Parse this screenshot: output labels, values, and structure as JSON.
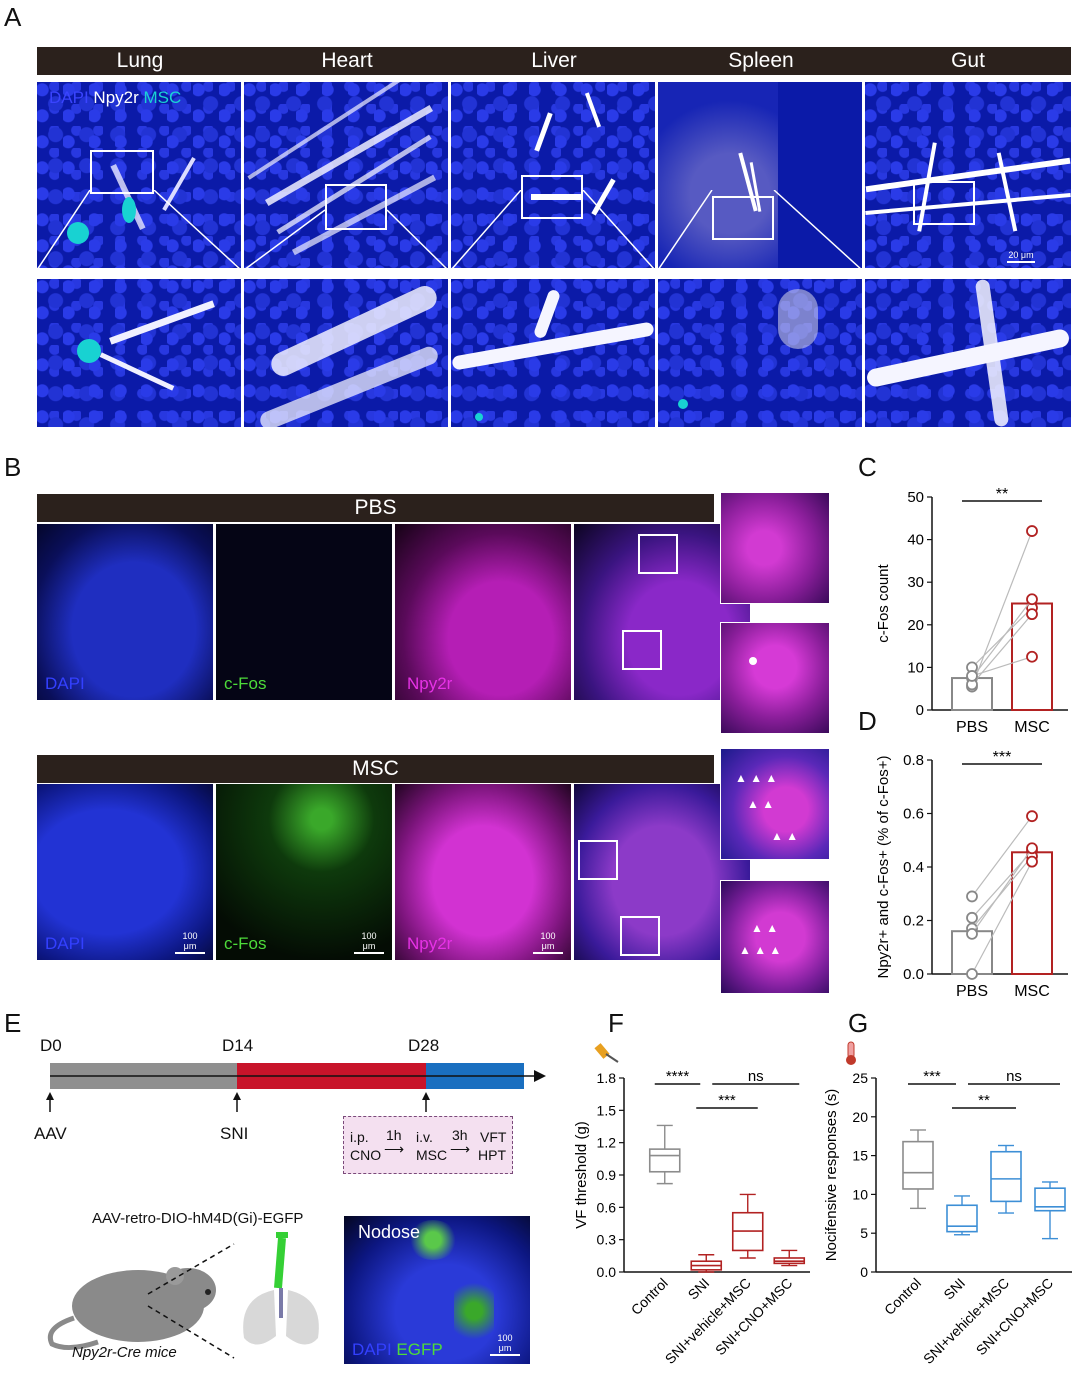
{
  "panel_letters": {
    "a": "A",
    "b": "B",
    "c": "C",
    "d": "D",
    "e": "E",
    "f": "F",
    "g": "G"
  },
  "panel_a": {
    "organs": [
      "Lung",
      "Heart",
      "Liver",
      "Spleen",
      "Gut"
    ],
    "legend": {
      "dapi": "DAPI",
      "npy2r": "Npy2r",
      "msc": "MSC"
    },
    "scale_bar": "20 μm",
    "colors": {
      "dapi": "#1a2cff",
      "npy2r": "#ffffff",
      "msc": "#19d3d3"
    }
  },
  "panel_b": {
    "groups": [
      "PBS",
      "MSC"
    ],
    "channels": {
      "dapi": "DAPI",
      "cfos": "c-Fos",
      "npy2r": "Npy2r"
    },
    "scale_bar": "100 μm",
    "colors": {
      "dapi": "#2d3cff",
      "cfos": "#4ddb3a",
      "npy2r": "#e632e6"
    }
  },
  "chart_data": [
    {
      "id": "C",
      "type": "bar",
      "categories": [
        "PBS",
        "MSC"
      ],
      "values": [
        7.5,
        25
      ],
      "ylabel": "c-Fos count",
      "ylim": [
        0,
        50
      ],
      "yticks": [
        0,
        10,
        20,
        30,
        40,
        50
      ],
      "paired_points": [
        [
          10,
          24
        ],
        [
          7.5,
          26
        ],
        [
          5.5,
          42
        ],
        [
          6,
          22.5
        ],
        [
          8,
          12.5
        ]
      ],
      "significance": "**",
      "colors": {
        "PBS": "#888888",
        "MSC": "#b22222"
      }
    },
    {
      "id": "D",
      "type": "bar",
      "categories": [
        "PBS",
        "MSC"
      ],
      "values": [
        0.16,
        0.455
      ],
      "ylabel": "Npy2r+ and c-Fos+ (% of c-Fos+)",
      "ylim": [
        0,
        0.8
      ],
      "yticks": [
        "0.0",
        "0.2",
        "0.4",
        "0.6",
        "0.8"
      ],
      "paired_points": [
        [
          0.29,
          0.59
        ],
        [
          0.21,
          0.46
        ],
        [
          0.17,
          0.44
        ],
        [
          0.0,
          0.42
        ],
        [
          0.15,
          0.47
        ]
      ],
      "significance": "***",
      "colors": {
        "PBS": "#888888",
        "MSC": "#b22222"
      }
    },
    {
      "id": "F",
      "type": "box",
      "categories": [
        "Control",
        "SNI",
        "SNI+vehicle+MSC",
        "SNI+CNO+MSC"
      ],
      "ylabel": "VF threshold (g)",
      "ylim": [
        0,
        1.8
      ],
      "yticks": [
        "0.0",
        "0.3",
        "0.6",
        "0.9",
        "1.2",
        "1.5",
        "1.8"
      ],
      "boxes": [
        {
          "min": 0.82,
          "q1": 0.93,
          "median": 1.08,
          "q3": 1.14,
          "max": 1.36
        },
        {
          "min": 0.0,
          "q1": 0.02,
          "median": 0.06,
          "q3": 0.1,
          "max": 0.16
        },
        {
          "min": 0.13,
          "q1": 0.2,
          "median": 0.38,
          "q3": 0.55,
          "max": 0.72
        },
        {
          "min": 0.06,
          "q1": 0.08,
          "median": 0.1,
          "q3": 0.13,
          "max": 0.2
        }
      ],
      "significance": [
        {
          "from": 0,
          "to": 1,
          "label": "****"
        },
        {
          "from": 1,
          "to": 3,
          "label": "ns"
        },
        {
          "from": 1,
          "to": 2,
          "label": "***"
        }
      ],
      "colors": [
        "#8c8c8c",
        "#b22222",
        "#b22222",
        "#b22222"
      ]
    },
    {
      "id": "G",
      "type": "box",
      "categories": [
        "Control",
        "SNI",
        "SNI+vehicle+MSC",
        "SNI+CNO+MSC"
      ],
      "ylabel": "Nocifensive responses (s)",
      "ylim": [
        0,
        25
      ],
      "yticks": [
        "0",
        "5",
        "10",
        "15",
        "20",
        "25"
      ],
      "boxes": [
        {
          "min": 8.2,
          "q1": 10.7,
          "median": 12.8,
          "q3": 16.8,
          "max": 18.3
        },
        {
          "min": 4.8,
          "q1": 5.2,
          "median": 5.9,
          "q3": 8.6,
          "max": 9.8
        },
        {
          "min": 7.6,
          "q1": 9.1,
          "median": 12.0,
          "q3": 15.5,
          "max": 16.3
        },
        {
          "min": 4.3,
          "q1": 7.9,
          "median": 8.4,
          "q3": 10.8,
          "max": 11.6
        }
      ],
      "significance": [
        {
          "from": 0,
          "to": 1,
          "label": "***"
        },
        {
          "from": 1,
          "to": 3,
          "label": "ns"
        },
        {
          "from": 1,
          "to": 2,
          "label": "**"
        }
      ],
      "colors": [
        "#8c8c8c",
        "#3d8fd6",
        "#3d8fd6",
        "#3d8fd6"
      ]
    }
  ],
  "panel_e": {
    "timeline": {
      "d0": "D0",
      "d14": "D14",
      "d28": "D28",
      "aav": "AAV",
      "sni": "SNI"
    },
    "protocol": {
      "ip": "i.p.",
      "cno": "CNO",
      "h1": "1h",
      "iv": "i.v.",
      "msc": "MSC",
      "h3": "3h",
      "vft": "VFT",
      "hpt": "HPT"
    },
    "virus_label": "AAV-retro-DIO-hM4D(Gi)-EGFP",
    "mouse_label": "Npy2r-Cre mice",
    "nodose": {
      "title": "Nodose",
      "dapi": "DAPI",
      "egfp": "EGFP",
      "scale": "100 μm"
    },
    "colors": {
      "gray": "#8f8f8f",
      "red": "#c8142a",
      "blue": "#1a6fc0"
    }
  }
}
